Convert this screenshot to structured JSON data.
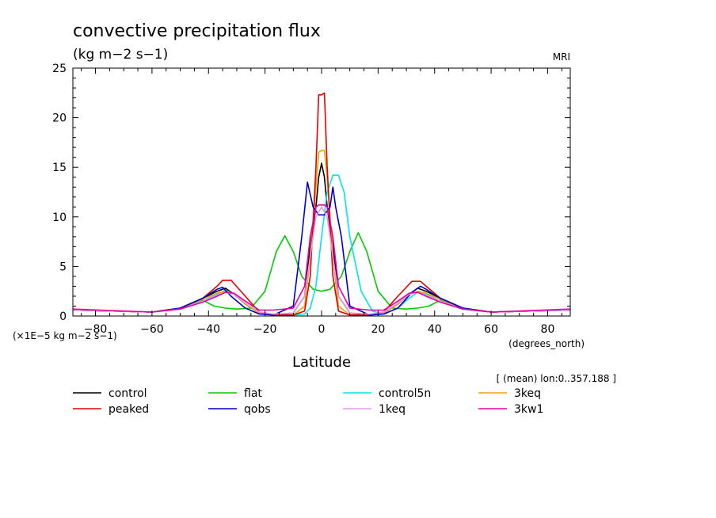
{
  "chart_data": {
    "type": "line",
    "title": "convective precipitation flux",
    "units": "(kg m−2 s−1)",
    "model": "MRI",
    "scale_note": "(×1E−5 kg m−2 s−1)",
    "xunits": "(degrees_north)",
    "xlabel": "Latitude",
    "region_note": "[ (mean) lon:0..357.188 ]",
    "xlim": [
      -88,
      88
    ],
    "ylim": [
      0,
      25
    ],
    "xticks": [
      -80,
      -60,
      -40,
      -20,
      0,
      20,
      40,
      60,
      80
    ],
    "xtick_labels": [
      "−80",
      "−60",
      "−40",
      "−20",
      "0",
      "20",
      "40",
      "60",
      "80"
    ],
    "yticks": [
      0,
      5,
      10,
      15,
      20,
      25
    ],
    "ytick_labels": [
      "0",
      "5",
      "10",
      "15",
      "20",
      "25"
    ],
    "series": [
      {
        "name": "control",
        "color": "#000000",
        "x": [
          -88,
          -60,
          -50,
          -42,
          -37,
          -34,
          -31,
          -27,
          -22,
          -17,
          -10,
          -6,
          -4,
          -2,
          -1,
          0,
          1,
          2,
          4,
          6,
          10,
          17,
          22,
          27,
          31,
          34,
          37,
          42,
          50,
          60,
          88
        ],
        "y": [
          0.6,
          0.4,
          0.8,
          1.8,
          2.5,
          2.8,
          2.2,
          1.2,
          0.3,
          0.1,
          0.3,
          2.0,
          7.0,
          11.0,
          14.0,
          15.4,
          14.0,
          11.0,
          7.0,
          2.0,
          0.3,
          0.1,
          0.3,
          1.2,
          2.2,
          2.8,
          2.5,
          1.8,
          0.8,
          0.4,
          0.6
        ]
      },
      {
        "name": "flat",
        "color": "#00cc00",
        "x": [
          -88,
          -60,
          -50,
          -42,
          -38,
          -34,
          -30,
          -25,
          -20,
          -16,
          -13,
          -10,
          -7,
          -3,
          0,
          3,
          7,
          10,
          13,
          16,
          20,
          25,
          30,
          34,
          38,
          42,
          50,
          60,
          88
        ],
        "y": [
          0.6,
          0.4,
          0.8,
          1.6,
          1.0,
          0.8,
          0.7,
          0.8,
          2.5,
          6.5,
          8.1,
          6.5,
          4.0,
          2.7,
          2.5,
          2.7,
          4.0,
          6.5,
          8.4,
          6.5,
          2.5,
          0.8,
          0.7,
          0.8,
          1.0,
          1.6,
          0.8,
          0.4,
          0.6
        ]
      },
      {
        "name": "control5n",
        "color": "#00e5e5",
        "x": [
          -88,
          -60,
          -50,
          -42,
          -37,
          -34,
          -31,
          -27,
          -22,
          -17,
          -10,
          -6,
          -4,
          -2,
          0,
          2,
          4,
          6,
          8,
          10,
          14,
          18,
          22,
          27,
          31,
          34,
          37,
          42,
          50,
          60,
          88
        ],
        "y": [
          0.6,
          0.4,
          0.7,
          1.5,
          2.2,
          2.6,
          2.2,
          1.2,
          0.3,
          0.1,
          0.1,
          0.2,
          0.8,
          3.0,
          8.0,
          12.5,
          14.2,
          14.2,
          12.5,
          8.0,
          2.5,
          0.5,
          0.2,
          0.8,
          1.8,
          2.4,
          2.2,
          1.5,
          0.7,
          0.4,
          0.6
        ]
      },
      {
        "name": "3keq",
        "color": "#e5a500",
        "x": [
          -88,
          -60,
          -50,
          -42,
          -37,
          -34,
          -31,
          -27,
          -22,
          -17,
          -10,
          -6,
          -4,
          -2,
          -1,
          0,
          1,
          2,
          4,
          6,
          10,
          17,
          22,
          27,
          31,
          34,
          37,
          42,
          50,
          60,
          88
        ],
        "y": [
          0.6,
          0.4,
          0.8,
          1.7,
          2.3,
          2.5,
          2.2,
          1.2,
          0.3,
          0.1,
          0.1,
          1.0,
          6.0,
          13.0,
          16.5,
          16.7,
          16.7,
          14.0,
          6.0,
          1.0,
          0.1,
          0.1,
          0.3,
          1.2,
          2.2,
          2.5,
          2.3,
          1.7,
          0.8,
          0.4,
          0.6
        ]
      },
      {
        "name": "peaked",
        "color": "#e50000",
        "x": [
          -88,
          -60,
          -50,
          -42,
          -37,
          -35,
          -32,
          -27,
          -22,
          -17,
          -10,
          -6,
          -4,
          -2,
          -1,
          0,
          1,
          2,
          4,
          6,
          10,
          17,
          22,
          27,
          32,
          35,
          37,
          42,
          50,
          60,
          88
        ],
        "y": [
          0.6,
          0.4,
          0.8,
          1.8,
          3.0,
          3.6,
          3.6,
          2.0,
          0.4,
          0.1,
          0.1,
          0.5,
          4.0,
          15.0,
          22.3,
          22.3,
          22.5,
          15.0,
          4.0,
          0.5,
          0.1,
          0.1,
          0.4,
          2.0,
          3.5,
          3.5,
          3.0,
          1.8,
          0.8,
          0.4,
          0.6
        ]
      },
      {
        "name": "qobs",
        "color": "#0000cc",
        "x": [
          -88,
          -60,
          -50,
          -42,
          -37,
          -35,
          -32,
          -27,
          -22,
          -17,
          -10,
          -7,
          -5,
          -3,
          -1,
          1,
          3,
          4,
          5,
          7,
          10,
          17,
          22,
          27,
          32,
          35,
          37,
          42,
          50,
          60,
          88
        ],
        "y": [
          0.6,
          0.4,
          0.8,
          1.8,
          2.7,
          2.9,
          2.0,
          0.8,
          0.2,
          0.1,
          1.0,
          8.0,
          13.5,
          11.0,
          10.2,
          10.2,
          11.0,
          13.0,
          11.0,
          8.0,
          1.0,
          0.1,
          0.2,
          0.8,
          2.4,
          3.0,
          2.7,
          1.8,
          0.8,
          0.4,
          0.6
        ]
      },
      {
        "name": "1keq",
        "color": "#e59ae5",
        "x": [
          -88,
          -60,
          -50,
          -42,
          -37,
          -34,
          -31,
          -27,
          -22,
          -17,
          -10,
          -6,
          -4,
          -2,
          0,
          2,
          4,
          6,
          10,
          17,
          22,
          27,
          31,
          34,
          37,
          42,
          50,
          60,
          88
        ],
        "y": [
          0.6,
          0.4,
          0.7,
          1.5,
          2.1,
          2.4,
          2.2,
          1.3,
          0.4,
          0.2,
          0.3,
          2.0,
          6.0,
          10.0,
          11.0,
          10.0,
          6.0,
          2.0,
          0.3,
          0.2,
          0.4,
          1.3,
          2.2,
          2.4,
          2.1,
          1.5,
          0.7,
          0.4,
          0.6
        ]
      },
      {
        "name": "3kw1",
        "color": "#e500a5",
        "x": [
          -88,
          -60,
          -50,
          -42,
          -37,
          -34,
          -31,
          -27,
          -22,
          -17,
          -10,
          -6,
          -4,
          -2,
          -1,
          0,
          1,
          2,
          4,
          6,
          10,
          17,
          22,
          27,
          31,
          34,
          37,
          42,
          50,
          60,
          88
        ],
        "y": [
          0.7,
          0.4,
          0.7,
          1.4,
          2.0,
          2.4,
          2.3,
          1.5,
          0.6,
          0.6,
          0.8,
          3.0,
          8.0,
          11.0,
          11.2,
          11.2,
          11.2,
          11.0,
          8.0,
          3.0,
          0.8,
          0.6,
          0.6,
          1.5,
          2.3,
          2.4,
          2.0,
          1.4,
          0.7,
          0.4,
          0.7
        ]
      }
    ],
    "grid": false,
    "legend_placement": "bottom"
  }
}
